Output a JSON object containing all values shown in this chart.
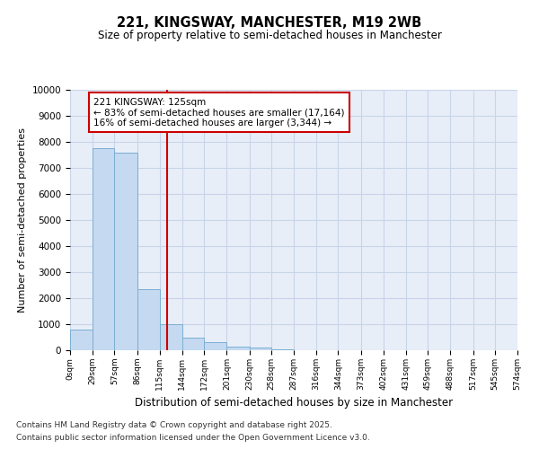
{
  "title": "221, KINGSWAY, MANCHESTER, M19 2WB",
  "subtitle": "Size of property relative to semi-detached houses in Manchester",
  "xlabel": "Distribution of semi-detached houses by size in Manchester",
  "ylabel": "Number of semi-detached properties",
  "footnote1": "Contains HM Land Registry data © Crown copyright and database right 2025.",
  "footnote2": "Contains public sector information licensed under the Open Government Licence v3.0.",
  "annotation_title": "221 KINGSWAY: 125sqm",
  "annotation_line1": "← 83% of semi-detached houses are smaller (17,164)",
  "annotation_line2": "16% of semi-detached houses are larger (3,344) →",
  "property_size": 125,
  "bar_edges": [
    0,
    29,
    57,
    86,
    115,
    144,
    172,
    201,
    230,
    258,
    287,
    316,
    344,
    373,
    402,
    431,
    459,
    488,
    517,
    545,
    574
  ],
  "bar_heights": [
    800,
    7750,
    7600,
    2350,
    1000,
    480,
    300,
    150,
    100,
    50,
    0,
    0,
    0,
    0,
    0,
    0,
    0,
    0,
    0,
    0
  ],
  "bar_color": "#c5d9f0",
  "bar_edge_color": "#7bafd4",
  "vline_color": "#cc0000",
  "grid_color": "#c8d4e8",
  "bg_color": "#e8eef8",
  "annotation_box_color": "#cc0000",
  "ylim": [
    0,
    10000
  ],
  "yticks": [
    0,
    1000,
    2000,
    3000,
    4000,
    5000,
    6000,
    7000,
    8000,
    9000,
    10000
  ],
  "xtick_labels": [
    "0sqm",
    "29sqm",
    "57sqm",
    "86sqm",
    "115sqm",
    "144sqm",
    "172sqm",
    "201sqm",
    "230sqm",
    "258sqm",
    "287sqm",
    "316sqm",
    "344sqm",
    "373sqm",
    "402sqm",
    "431sqm",
    "459sqm",
    "488sqm",
    "517sqm",
    "545sqm",
    "574sqm"
  ]
}
